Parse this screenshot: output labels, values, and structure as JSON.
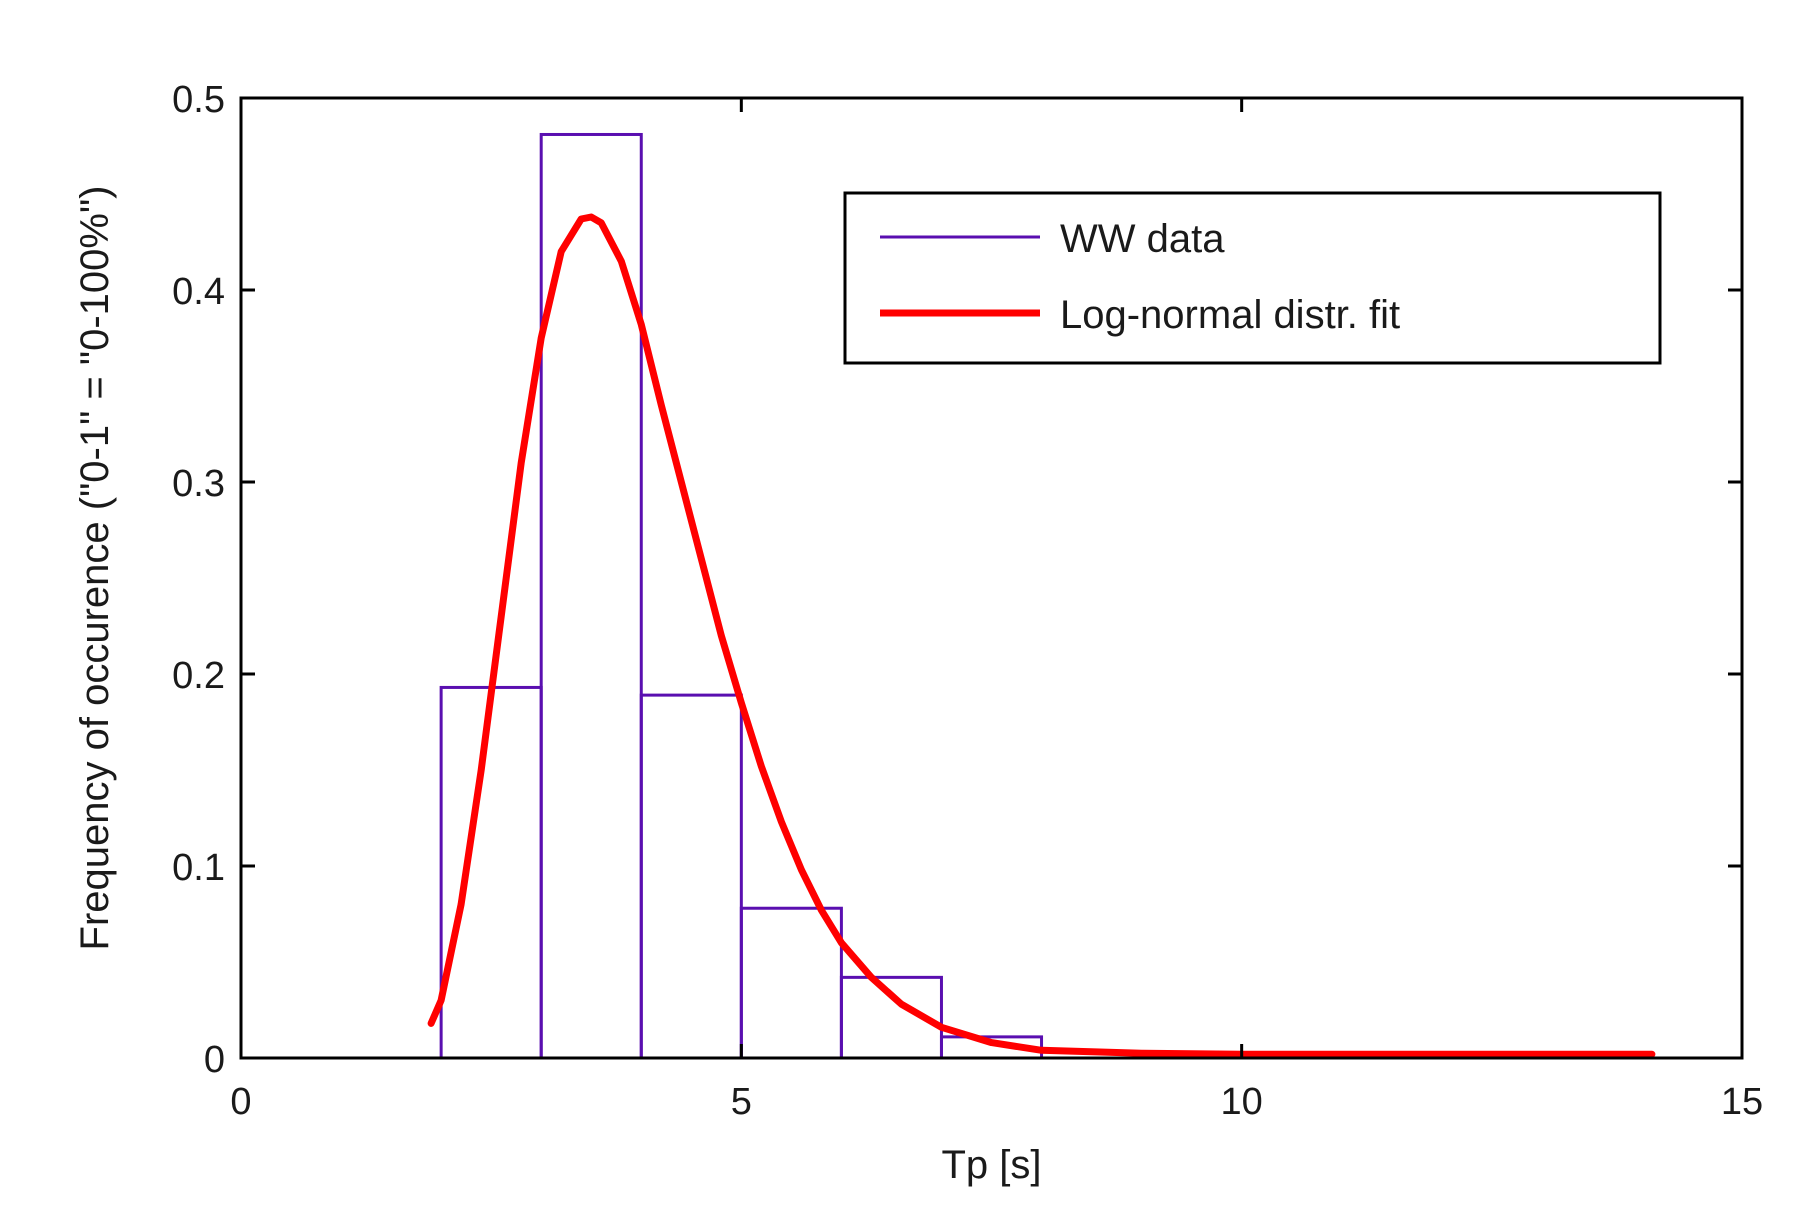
{
  "chart_data": {
    "type": "bar",
    "title": "",
    "xlabel": "Tp [s]",
    "ylabel": "Frequency of occurence (\"0-1\" = \"0-100%\")",
    "xlim": [
      0,
      15
    ],
    "ylim": [
      0,
      0.5
    ],
    "xticks": [
      "0",
      "5",
      "10",
      "15"
    ],
    "yticks": [
      "0",
      "0.1",
      "0.2",
      "0.3",
      "0.4",
      "0.5"
    ],
    "grid": false,
    "legend_placement": "top-right",
    "colors": {
      "histogram": "#5a0fb0",
      "fit": "#ff0000",
      "ylabel": "#c08a1a"
    },
    "series": [
      {
        "name": "WW data",
        "kind": "histogram",
        "bin_edges": [
          2,
          3,
          4,
          5,
          6,
          7,
          8
        ],
        "values": [
          0.193,
          0.481,
          0.189,
          0.078,
          0.042,
          0.011
        ]
      },
      {
        "name": "Log-normal distr. fit",
        "kind": "line",
        "x": [
          1.9,
          2.0,
          2.2,
          2.4,
          2.6,
          2.8,
          3.0,
          3.2,
          3.4,
          3.5,
          3.6,
          3.8,
          4.0,
          4.2,
          4.4,
          4.6,
          4.8,
          5.0,
          5.2,
          5.4,
          5.6,
          5.8,
          6.0,
          6.3,
          6.6,
          7.0,
          7.5,
          8.0,
          9.0,
          10.0,
          11.0,
          12.0,
          13.0,
          14.1
        ],
        "y": [
          0.018,
          0.03,
          0.08,
          0.15,
          0.23,
          0.31,
          0.375,
          0.42,
          0.437,
          0.438,
          0.435,
          0.415,
          0.382,
          0.34,
          0.3,
          0.26,
          0.22,
          0.185,
          0.152,
          0.123,
          0.098,
          0.077,
          0.06,
          0.042,
          0.028,
          0.016,
          0.008,
          0.004,
          0.0025,
          0.002,
          0.002,
          0.002,
          0.002,
          0.002
        ]
      }
    ]
  }
}
